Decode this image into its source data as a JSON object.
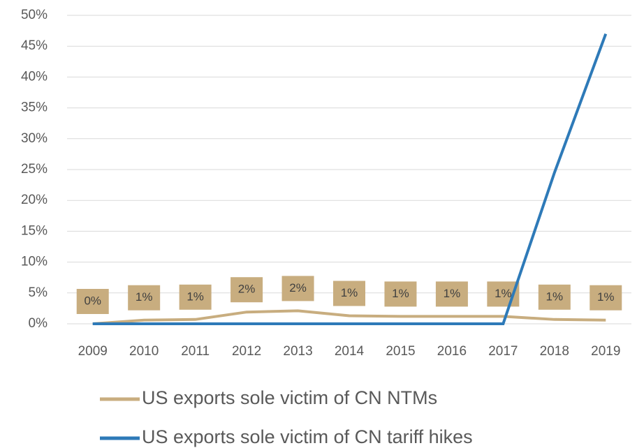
{
  "chart_data": {
    "type": "line",
    "categories": [
      "2009",
      "2010",
      "2011",
      "2012",
      "2013",
      "2014",
      "2015",
      "2016",
      "2017",
      "2018",
      "2019"
    ],
    "series": [
      {
        "name": "US exports sole victim of CN NTMs",
        "color": "#c8ad7f",
        "values": [
          0,
          0.6,
          0.7,
          1.9,
          2.1,
          1.3,
          1.2,
          1.2,
          1.2,
          0.7,
          0.6
        ],
        "value_labels": [
          "0%",
          "1%",
          "1%",
          "2%",
          "2%",
          "1%",
          "1%",
          "1%",
          "1%",
          "1%",
          "1%"
        ]
      },
      {
        "name": "US exports sole victim of CN tariff hikes",
        "color": "#2e7ab8",
        "values": [
          0,
          0,
          0,
          0,
          0,
          0,
          0,
          0,
          0,
          24.5,
          47
        ]
      }
    ],
    "ylim": [
      0,
      50
    ],
    "yticks": [
      {
        "value": 0,
        "label": "0%"
      },
      {
        "value": 5,
        "label": "5%"
      },
      {
        "value": 10,
        "label": "10%"
      },
      {
        "value": 15,
        "label": "15%"
      },
      {
        "value": 20,
        "label": "20%"
      },
      {
        "value": 25,
        "label": "25%"
      },
      {
        "value": 30,
        "label": "30%"
      },
      {
        "value": 35,
        "label": "35%"
      },
      {
        "value": 40,
        "label": "40%"
      },
      {
        "value": 45,
        "label": "45%"
      },
      {
        "value": 50,
        "label": "50%"
      }
    ],
    "grid": true
  }
}
